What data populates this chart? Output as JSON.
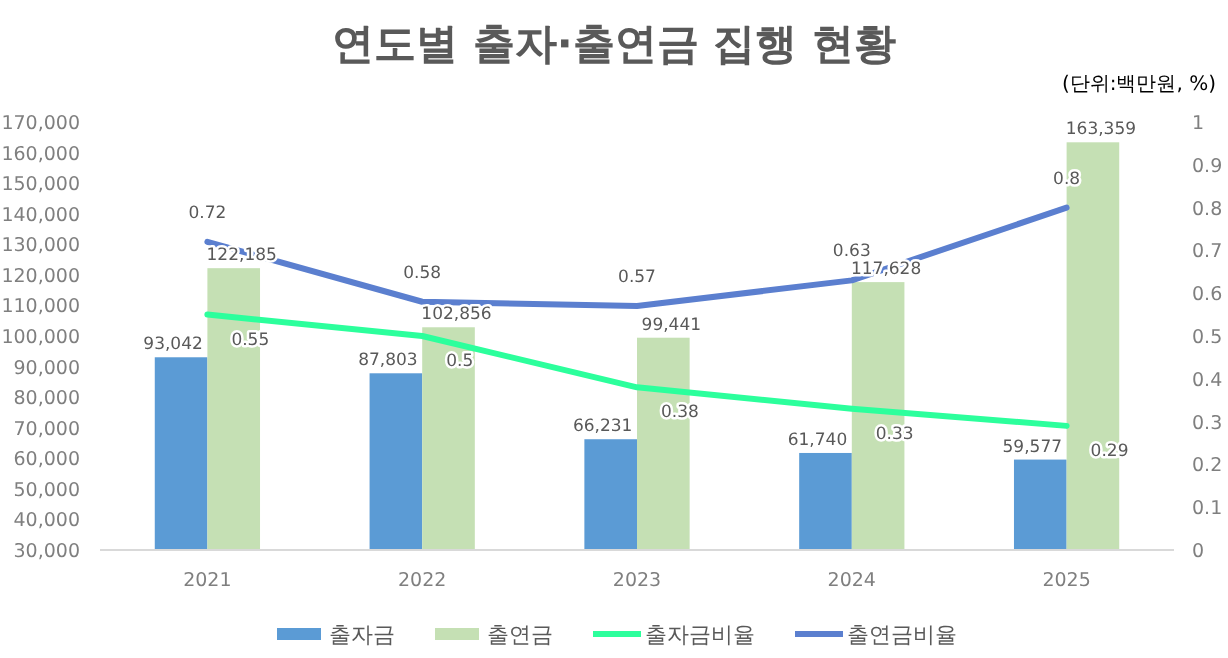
{
  "chart_data": {
    "type": "bar",
    "title": "연도별 출자·출연금 집행 현황",
    "annotations": [
      "(단위:백만원, %)"
    ],
    "categories": [
      "2021",
      "2022",
      "2023",
      "2024",
      "2025"
    ],
    "series": [
      {
        "name": "출자금",
        "color": "#5b9bd5",
        "values": [
          93042,
          87803,
          66231,
          61740,
          59577
        ],
        "value_labels": [
          "93,042",
          "87,803",
          "66,231",
          "61,740",
          "59,577"
        ]
      },
      {
        "name": "출연금",
        "color": "#c5e0b4",
        "values": [
          122185,
          102856,
          99441,
          117628,
          163359
        ],
        "value_labels": [
          "122,185",
          "102,856",
          "99,441",
          "117,628",
          "163,359"
        ]
      },
      {
        "name": "출자금비율",
        "type": "line",
        "axis": "y2",
        "color": "#2cff9c",
        "values": [
          0.55,
          0.5,
          0.38,
          0.33,
          0.29
        ]
      },
      {
        "name": "출연금비율",
        "type": "line",
        "axis": "y2",
        "color": "#5b7fcf",
        "values": [
          0.72,
          0.58,
          0.57,
          0.63,
          0.8
        ]
      }
    ],
    "ylim": [
      30000,
      170000
    ],
    "yticks": [
      {
        "value": 30000,
        "label": "30,000"
      },
      {
        "value": 40000,
        "label": "40,000"
      },
      {
        "value": 50000,
        "label": "50,000"
      },
      {
        "value": 60000,
        "label": "60,000"
      },
      {
        "value": 70000,
        "label": "70,000"
      },
      {
        "value": 80000,
        "label": "80,000"
      },
      {
        "value": 90000,
        "label": "90,000"
      },
      {
        "value": 100000,
        "label": "100,000"
      },
      {
        "value": 110000,
        "label": "110,000"
      },
      {
        "value": 120000,
        "label": "120,000"
      },
      {
        "value": 130000,
        "label": "130,000"
      },
      {
        "value": 140000,
        "label": "140,000"
      },
      {
        "value": 150000,
        "label": "150,000"
      },
      {
        "value": 160000,
        "label": "160,000"
      },
      {
        "value": 170000,
        "label": "170,000"
      }
    ],
    "y2lim": [
      0,
      1
    ],
    "y2ticks": [
      0,
      0.1,
      0.2,
      0.3,
      0.4,
      0.5,
      0.6,
      0.7,
      0.8,
      0.9,
      1
    ],
    "data_labels": true,
    "legend": "bottom",
    "grid": false
  }
}
